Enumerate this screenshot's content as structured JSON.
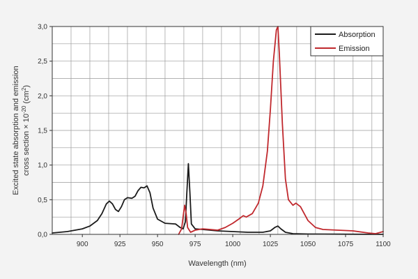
{
  "chart_data": {
    "type": "line",
    "xlabel": "Wavelength (nm)",
    "ylabel_line1": "Excited state absorption and emission",
    "ylabel_line2": "cross section × 10",
    "ylabel_exp": "-20",
    "ylabel_unit": " (cm",
    "ylabel_unit_exp": "2",
    "ylabel_close": ")",
    "xlim": [
      880,
      1100
    ],
    "ylim": [
      0,
      3.0
    ],
    "xticks": [
      {
        "value": 900,
        "label": "900"
      },
      {
        "value": 925,
        "label": "925"
      },
      {
        "value": 950,
        "label": "950"
      },
      {
        "value": 975,
        "label": "975"
      },
      {
        "value": 1000,
        "label": "1000"
      },
      {
        "value": 1025,
        "label": "1025"
      },
      {
        "value": 1050,
        "label": "1050"
      },
      {
        "value": 1075,
        "label": "1075"
      },
      {
        "value": 1100,
        "label": "1100"
      }
    ],
    "yticks": [
      {
        "value": 0,
        "label": "0,0"
      },
      {
        "value": 0.5,
        "label": "0,5"
      },
      {
        "value": 1.0,
        "label": "1,0"
      },
      {
        "value": 1.5,
        "label": "1,5"
      },
      {
        "value": 2.0,
        "label": "2,0"
      },
      {
        "value": 2.5,
        "label": "2,5"
      },
      {
        "value": 3.0,
        "label": "3,0"
      }
    ],
    "grid": true,
    "legend_position": "top-right",
    "series": [
      {
        "name": "Absorption",
        "color": "#1a1a1a",
        "points": [
          [
            880,
            0.02
          ],
          [
            890,
            0.04
          ],
          [
            900,
            0.08
          ],
          [
            905,
            0.12
          ],
          [
            910,
            0.2
          ],
          [
            913,
            0.3
          ],
          [
            916,
            0.44
          ],
          [
            918,
            0.48
          ],
          [
            920,
            0.44
          ],
          [
            922,
            0.36
          ],
          [
            924,
            0.33
          ],
          [
            926,
            0.4
          ],
          [
            928,
            0.5
          ],
          [
            930,
            0.53
          ],
          [
            933,
            0.52
          ],
          [
            935,
            0.55
          ],
          [
            937,
            0.63
          ],
          [
            939,
            0.68
          ],
          [
            941,
            0.67
          ],
          [
            943,
            0.7
          ],
          [
            945,
            0.6
          ],
          [
            947,
            0.38
          ],
          [
            950,
            0.22
          ],
          [
            955,
            0.16
          ],
          [
            962,
            0.15
          ],
          [
            965,
            0.1
          ],
          [
            967,
            0.08
          ],
          [
            968.5,
            0.18
          ],
          [
            969.5,
            0.6
          ],
          [
            970.5,
            1.02
          ],
          [
            971.5,
            0.6
          ],
          [
            972.5,
            0.15
          ],
          [
            975,
            0.08
          ],
          [
            980,
            0.07
          ],
          [
            985,
            0.06
          ],
          [
            990,
            0.05
          ],
          [
            1000,
            0.04
          ],
          [
            1010,
            0.03
          ],
          [
            1020,
            0.03
          ],
          [
            1025,
            0.05
          ],
          [
            1028,
            0.1
          ],
          [
            1030,
            0.12
          ],
          [
            1032,
            0.08
          ],
          [
            1035,
            0.03
          ],
          [
            1040,
            0.01
          ],
          [
            1050,
            0.005
          ],
          [
            1100,
            0.0
          ]
        ]
      },
      {
        "name": "Emission",
        "color": "#c0282d",
        "points": [
          [
            964,
            0.0
          ],
          [
            966,
            0.08
          ],
          [
            967,
            0.25
          ],
          [
            968,
            0.42
          ],
          [
            969,
            0.3
          ],
          [
            970,
            0.1
          ],
          [
            972,
            0.03
          ],
          [
            975,
            0.06
          ],
          [
            980,
            0.08
          ],
          [
            985,
            0.07
          ],
          [
            990,
            0.06
          ],
          [
            995,
            0.1
          ],
          [
            1000,
            0.16
          ],
          [
            1004,
            0.22
          ],
          [
            1007,
            0.27
          ],
          [
            1009,
            0.25
          ],
          [
            1013,
            0.3
          ],
          [
            1017,
            0.45
          ],
          [
            1020,
            0.7
          ],
          [
            1023,
            1.2
          ],
          [
            1025,
            1.8
          ],
          [
            1027,
            2.5
          ],
          [
            1029,
            2.95
          ],
          [
            1030,
            3.0
          ],
          [
            1031,
            2.6
          ],
          [
            1033,
            1.6
          ],
          [
            1035,
            0.8
          ],
          [
            1037,
            0.5
          ],
          [
            1040,
            0.42
          ],
          [
            1042,
            0.45
          ],
          [
            1045,
            0.4
          ],
          [
            1050,
            0.2
          ],
          [
            1055,
            0.1
          ],
          [
            1060,
            0.07
          ],
          [
            1070,
            0.06
          ],
          [
            1080,
            0.05
          ],
          [
            1090,
            0.02
          ],
          [
            1095,
            0.01
          ],
          [
            1100,
            0.04
          ]
        ]
      }
    ]
  }
}
